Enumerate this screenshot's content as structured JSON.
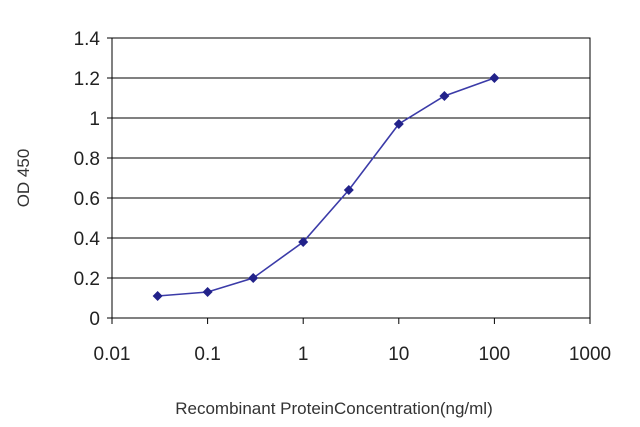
{
  "colors": {
    "series_line": "#3b3ba8",
    "series_marker": "#22228a",
    "gridline": "#000000",
    "axis": "#000000",
    "text": "#222222"
  },
  "chart_data": {
    "type": "line",
    "title": "",
    "xlabel": "Recombinant ProteinConcentration(ng/ml)",
    "ylabel": "OD 450",
    "x_scale": "log",
    "xlim": [
      0.01,
      1000
    ],
    "ylim": [
      0,
      1.4
    ],
    "x_ticks": [
      "0.01",
      "0.1",
      "1",
      "10",
      "100",
      "1000"
    ],
    "y_ticks": [
      "0",
      "0.2",
      "0.4",
      "0.6",
      "0.8",
      "1",
      "1.2",
      "1.4"
    ],
    "grid": "horizontal",
    "legend": "none",
    "series": [
      {
        "x": [
          0.03,
          0.1,
          0.3,
          1,
          3,
          10,
          30,
          100
        ],
        "y": [
          0.11,
          0.13,
          0.2,
          0.38,
          0.64,
          0.97,
          1.11,
          1.2
        ]
      }
    ]
  }
}
